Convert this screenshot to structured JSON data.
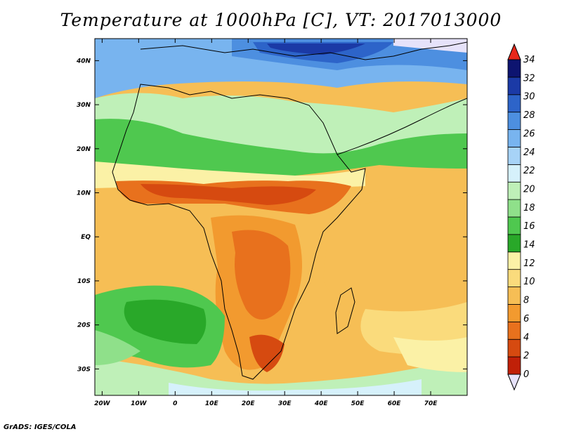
{
  "title": "Temperature at 1000hPa [C], VT: 2017013000",
  "footer": "GrADS: IGES/COLA",
  "map": {
    "lon_labels": [
      "20W",
      "10W",
      "0",
      "10E",
      "20E",
      "30E",
      "40E",
      "50E",
      "60E",
      "70E"
    ],
    "lat_labels": [
      "40N",
      "30N",
      "20N",
      "10N",
      "EQ",
      "10S",
      "20S",
      "30S"
    ],
    "lon_range": [
      -22,
      80
    ],
    "lat_range": [
      -36,
      45
    ]
  },
  "colorbar": {
    "labels": [
      "34",
      "32",
      "30",
      "28",
      "26",
      "24",
      "22",
      "20",
      "18",
      "16",
      "14",
      "12",
      "10",
      "8",
      "6",
      "4",
      "2",
      "0"
    ],
    "colors": [
      "#0d1470",
      "#1b3aa6",
      "#2d64c9",
      "#4d8fe0",
      "#78b4ef",
      "#a7d3f7",
      "#d6f1fb",
      "#bff0b8",
      "#8fe08a",
      "#4fc84f",
      "#29a829",
      "#fbf1a6",
      "#fadb7c",
      "#f6be55",
      "#f29a2f",
      "#e8711d",
      "#d64a10",
      "#c02008"
    ],
    "over_color": "#e8281a",
    "under_color": "#e6e2fa"
  }
}
